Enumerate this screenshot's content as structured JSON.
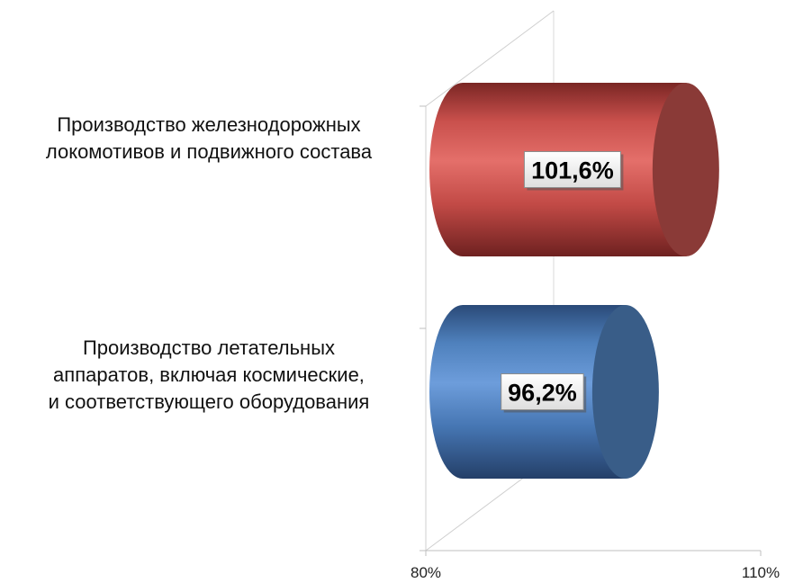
{
  "chart_data": {
    "type": "bar",
    "orientation": "horizontal",
    "style": "3d-cylinder",
    "categories": [
      [
        "Производство  железнодорожных",
        "локомотивов  и подвижного  состава"
      ],
      [
        "Производство  летательных",
        "аппаратов,  включая космические,",
        "и соответствующего  оборудования"
      ]
    ],
    "values": [
      101.6,
      96.2
    ],
    "value_labels": [
      "101,6%",
      "96,2%"
    ],
    "xlim": [
      80,
      110
    ],
    "x_tick_labels": [
      "80%",
      "110%"
    ],
    "colors": [
      "#c0504d",
      "#4f81bd"
    ],
    "grid": false,
    "legend": "none"
  }
}
